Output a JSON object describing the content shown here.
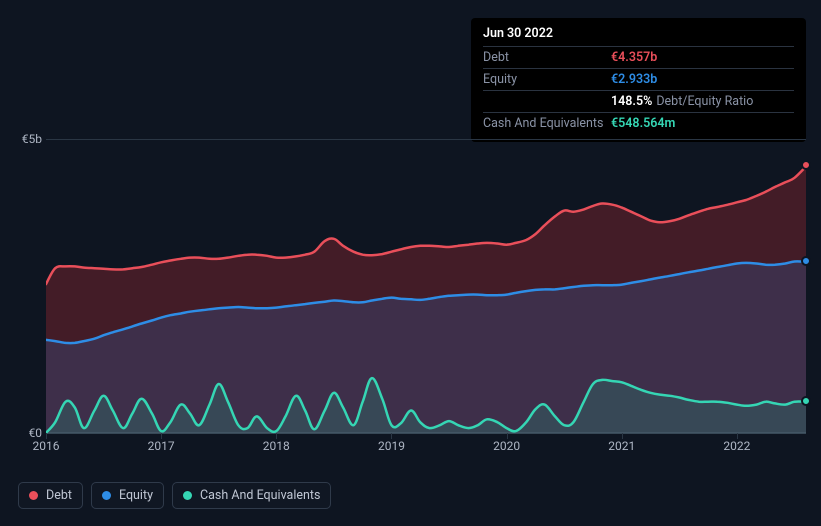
{
  "chart": {
    "type": "area",
    "background_color": "#0e1521",
    "grid_color": "#2a3644",
    "label_color": "#aeb6c4",
    "label_fontsize": 12,
    "y_axis": {
      "min": 0,
      "max": 5,
      "ticks": [
        0,
        5
      ],
      "tick_labels": [
        "€0",
        "€5b"
      ]
    },
    "x_axis": {
      "min": 2016,
      "max": 2022.6,
      "ticks": [
        2016,
        2017,
        2018,
        2019,
        2020,
        2021,
        2022
      ],
      "tick_labels": [
        "2016",
        "2017",
        "2018",
        "2019",
        "2020",
        "2021",
        "2022"
      ]
    },
    "series": {
      "debt": {
        "label": "Debt",
        "stroke": "#e94f5a",
        "fill": "rgba(180,45,52,0.32)",
        "stroke_width": 2.5,
        "end_marker": true,
        "points": [
          [
            2016.0,
            2.55
          ],
          [
            2016.08,
            2.82
          ],
          [
            2016.17,
            2.85
          ],
          [
            2016.25,
            2.85
          ],
          [
            2016.33,
            2.83
          ],
          [
            2016.42,
            2.82
          ],
          [
            2016.5,
            2.81
          ],
          [
            2016.58,
            2.8
          ],
          [
            2016.67,
            2.8
          ],
          [
            2016.75,
            2.82
          ],
          [
            2016.83,
            2.84
          ],
          [
            2016.92,
            2.88
          ],
          [
            2017.0,
            2.92
          ],
          [
            2017.08,
            2.95
          ],
          [
            2017.17,
            2.98
          ],
          [
            2017.25,
            3.0
          ],
          [
            2017.33,
            3.0
          ],
          [
            2017.42,
            2.98
          ],
          [
            2017.5,
            2.98
          ],
          [
            2017.58,
            3.0
          ],
          [
            2017.67,
            3.03
          ],
          [
            2017.75,
            3.05
          ],
          [
            2017.83,
            3.05
          ],
          [
            2017.92,
            3.03
          ],
          [
            2018.0,
            3.0
          ],
          [
            2018.08,
            3.0
          ],
          [
            2018.17,
            3.02
          ],
          [
            2018.25,
            3.05
          ],
          [
            2018.33,
            3.1
          ],
          [
            2018.42,
            3.28
          ],
          [
            2018.5,
            3.32
          ],
          [
            2018.58,
            3.2
          ],
          [
            2018.67,
            3.1
          ],
          [
            2018.75,
            3.05
          ],
          [
            2018.83,
            3.04
          ],
          [
            2018.92,
            3.06
          ],
          [
            2019.0,
            3.1
          ],
          [
            2019.08,
            3.14
          ],
          [
            2019.17,
            3.18
          ],
          [
            2019.25,
            3.2
          ],
          [
            2019.33,
            3.2
          ],
          [
            2019.42,
            3.19
          ],
          [
            2019.5,
            3.18
          ],
          [
            2019.58,
            3.2
          ],
          [
            2019.67,
            3.22
          ],
          [
            2019.75,
            3.24
          ],
          [
            2019.83,
            3.25
          ],
          [
            2019.92,
            3.24
          ],
          [
            2020.0,
            3.22
          ],
          [
            2020.08,
            3.25
          ],
          [
            2020.17,
            3.3
          ],
          [
            2020.25,
            3.4
          ],
          [
            2020.33,
            3.55
          ],
          [
            2020.42,
            3.7
          ],
          [
            2020.5,
            3.8
          ],
          [
            2020.58,
            3.78
          ],
          [
            2020.67,
            3.82
          ],
          [
            2020.75,
            3.88
          ],
          [
            2020.83,
            3.92
          ],
          [
            2020.92,
            3.9
          ],
          [
            2021.0,
            3.85
          ],
          [
            2021.08,
            3.78
          ],
          [
            2021.17,
            3.7
          ],
          [
            2021.25,
            3.63
          ],
          [
            2021.33,
            3.6
          ],
          [
            2021.42,
            3.62
          ],
          [
            2021.5,
            3.66
          ],
          [
            2021.58,
            3.72
          ],
          [
            2021.67,
            3.78
          ],
          [
            2021.75,
            3.83
          ],
          [
            2021.83,
            3.86
          ],
          [
            2021.92,
            3.9
          ],
          [
            2022.0,
            3.94
          ],
          [
            2022.08,
            3.98
          ],
          [
            2022.17,
            4.05
          ],
          [
            2022.25,
            4.12
          ],
          [
            2022.33,
            4.2
          ],
          [
            2022.42,
            4.28
          ],
          [
            2022.5,
            4.357
          ],
          [
            2022.6,
            4.55
          ]
        ]
      },
      "equity": {
        "label": "Equity",
        "stroke": "#2e8de6",
        "fill": "rgba(46,120,200,0.22)",
        "stroke_width": 2.5,
        "end_marker": true,
        "points": [
          [
            2016.0,
            1.6
          ],
          [
            2016.08,
            1.58
          ],
          [
            2016.17,
            1.55
          ],
          [
            2016.25,
            1.55
          ],
          [
            2016.33,
            1.58
          ],
          [
            2016.42,
            1.62
          ],
          [
            2016.5,
            1.68
          ],
          [
            2016.58,
            1.73
          ],
          [
            2016.67,
            1.78
          ],
          [
            2016.75,
            1.83
          ],
          [
            2016.83,
            1.88
          ],
          [
            2016.92,
            1.93
          ],
          [
            2017.0,
            1.98
          ],
          [
            2017.08,
            2.02
          ],
          [
            2017.17,
            2.05
          ],
          [
            2017.25,
            2.08
          ],
          [
            2017.33,
            2.1
          ],
          [
            2017.42,
            2.12
          ],
          [
            2017.5,
            2.14
          ],
          [
            2017.58,
            2.15
          ],
          [
            2017.67,
            2.16
          ],
          [
            2017.75,
            2.15
          ],
          [
            2017.83,
            2.14
          ],
          [
            2017.92,
            2.14
          ],
          [
            2018.0,
            2.15
          ],
          [
            2018.08,
            2.17
          ],
          [
            2018.17,
            2.19
          ],
          [
            2018.25,
            2.21
          ],
          [
            2018.33,
            2.23
          ],
          [
            2018.42,
            2.25
          ],
          [
            2018.5,
            2.27
          ],
          [
            2018.58,
            2.26
          ],
          [
            2018.67,
            2.24
          ],
          [
            2018.75,
            2.24
          ],
          [
            2018.83,
            2.27
          ],
          [
            2018.92,
            2.3
          ],
          [
            2019.0,
            2.32
          ],
          [
            2019.08,
            2.3
          ],
          [
            2019.17,
            2.29
          ],
          [
            2019.25,
            2.28
          ],
          [
            2019.33,
            2.3
          ],
          [
            2019.42,
            2.33
          ],
          [
            2019.5,
            2.35
          ],
          [
            2019.58,
            2.36
          ],
          [
            2019.67,
            2.37
          ],
          [
            2019.75,
            2.37
          ],
          [
            2019.83,
            2.36
          ],
          [
            2019.92,
            2.36
          ],
          [
            2020.0,
            2.37
          ],
          [
            2020.08,
            2.4
          ],
          [
            2020.17,
            2.43
          ],
          [
            2020.25,
            2.45
          ],
          [
            2020.33,
            2.46
          ],
          [
            2020.42,
            2.46
          ],
          [
            2020.5,
            2.48
          ],
          [
            2020.58,
            2.5
          ],
          [
            2020.67,
            2.52
          ],
          [
            2020.75,
            2.53
          ],
          [
            2020.83,
            2.53
          ],
          [
            2020.92,
            2.53
          ],
          [
            2021.0,
            2.54
          ],
          [
            2021.08,
            2.57
          ],
          [
            2021.17,
            2.6
          ],
          [
            2021.25,
            2.63
          ],
          [
            2021.33,
            2.66
          ],
          [
            2021.42,
            2.69
          ],
          [
            2021.5,
            2.72
          ],
          [
            2021.58,
            2.75
          ],
          [
            2021.67,
            2.78
          ],
          [
            2021.75,
            2.81
          ],
          [
            2021.83,
            2.84
          ],
          [
            2021.92,
            2.87
          ],
          [
            2022.0,
            2.9
          ],
          [
            2022.08,
            2.91
          ],
          [
            2022.17,
            2.9
          ],
          [
            2022.25,
            2.88
          ],
          [
            2022.33,
            2.88
          ],
          [
            2022.42,
            2.9
          ],
          [
            2022.5,
            2.933
          ],
          [
            2022.6,
            2.93
          ]
        ]
      },
      "cash": {
        "label": "Cash And Equivalents",
        "stroke": "#35d6b4",
        "fill": "rgba(40,140,120,0.28)",
        "stroke_width": 2.5,
        "end_marker": true,
        "points": [
          [
            2016.0,
            0.02
          ],
          [
            2016.08,
            0.2
          ],
          [
            2016.17,
            0.55
          ],
          [
            2016.25,
            0.45
          ],
          [
            2016.33,
            0.1
          ],
          [
            2016.42,
            0.4
          ],
          [
            2016.5,
            0.65
          ],
          [
            2016.58,
            0.4
          ],
          [
            2016.67,
            0.1
          ],
          [
            2016.75,
            0.35
          ],
          [
            2016.83,
            0.6
          ],
          [
            2016.92,
            0.35
          ],
          [
            2017.0,
            0.05
          ],
          [
            2017.08,
            0.2
          ],
          [
            2017.17,
            0.5
          ],
          [
            2017.25,
            0.35
          ],
          [
            2017.33,
            0.15
          ],
          [
            2017.42,
            0.5
          ],
          [
            2017.5,
            0.85
          ],
          [
            2017.58,
            0.55
          ],
          [
            2017.67,
            0.15
          ],
          [
            2017.75,
            0.1
          ],
          [
            2017.83,
            0.3
          ],
          [
            2017.92,
            0.1
          ],
          [
            2018.0,
            0.05
          ],
          [
            2018.08,
            0.3
          ],
          [
            2018.17,
            0.65
          ],
          [
            2018.25,
            0.4
          ],
          [
            2018.33,
            0.08
          ],
          [
            2018.42,
            0.4
          ],
          [
            2018.5,
            0.7
          ],
          [
            2018.58,
            0.45
          ],
          [
            2018.67,
            0.15
          ],
          [
            2018.75,
            0.55
          ],
          [
            2018.83,
            0.95
          ],
          [
            2018.92,
            0.6
          ],
          [
            2019.0,
            0.15
          ],
          [
            2019.08,
            0.18
          ],
          [
            2019.17,
            0.4
          ],
          [
            2019.25,
            0.2
          ],
          [
            2019.33,
            0.1
          ],
          [
            2019.42,
            0.15
          ],
          [
            2019.5,
            0.22
          ],
          [
            2019.58,
            0.15
          ],
          [
            2019.67,
            0.1
          ],
          [
            2019.75,
            0.15
          ],
          [
            2019.83,
            0.25
          ],
          [
            2019.92,
            0.2
          ],
          [
            2020.0,
            0.1
          ],
          [
            2020.08,
            0.05
          ],
          [
            2020.17,
            0.2
          ],
          [
            2020.25,
            0.42
          ],
          [
            2020.33,
            0.5
          ],
          [
            2020.42,
            0.3
          ],
          [
            2020.5,
            0.15
          ],
          [
            2020.58,
            0.2
          ],
          [
            2020.67,
            0.55
          ],
          [
            2020.75,
            0.85
          ],
          [
            2020.83,
            0.92
          ],
          [
            2020.92,
            0.9
          ],
          [
            2021.0,
            0.88
          ],
          [
            2021.08,
            0.82
          ],
          [
            2021.17,
            0.75
          ],
          [
            2021.25,
            0.7
          ],
          [
            2021.33,
            0.67
          ],
          [
            2021.42,
            0.65
          ],
          [
            2021.5,
            0.62
          ],
          [
            2021.58,
            0.58
          ],
          [
            2021.67,
            0.55
          ],
          [
            2021.75,
            0.55
          ],
          [
            2021.83,
            0.55
          ],
          [
            2021.92,
            0.53
          ],
          [
            2022.0,
            0.5
          ],
          [
            2022.08,
            0.48
          ],
          [
            2022.17,
            0.5
          ],
          [
            2022.25,
            0.55
          ],
          [
            2022.33,
            0.52
          ],
          [
            2022.42,
            0.5
          ],
          [
            2022.5,
            0.548564
          ],
          [
            2022.6,
            0.55
          ]
        ]
      }
    }
  },
  "tooltip": {
    "title": "Jun 30 2022",
    "rows": [
      {
        "label": "Debt",
        "value": "€4.357b",
        "color": "#e94f5a"
      },
      {
        "label": "Equity",
        "value": "€2.933b",
        "color": "#2e8de6"
      },
      {
        "label": "",
        "value": "148.5%",
        "note": "Debt/Equity Ratio",
        "color": "#ffffff"
      },
      {
        "label": "Cash And Equivalents",
        "value": "€548.564m",
        "color": "#35d6b4"
      }
    ]
  },
  "legend": [
    {
      "key": "debt",
      "label": "Debt",
      "color": "#e94f5a"
    },
    {
      "key": "equity",
      "label": "Equity",
      "color": "#2e8de6"
    },
    {
      "key": "cash",
      "label": "Cash And Equivalents",
      "color": "#35d6b4"
    }
  ]
}
